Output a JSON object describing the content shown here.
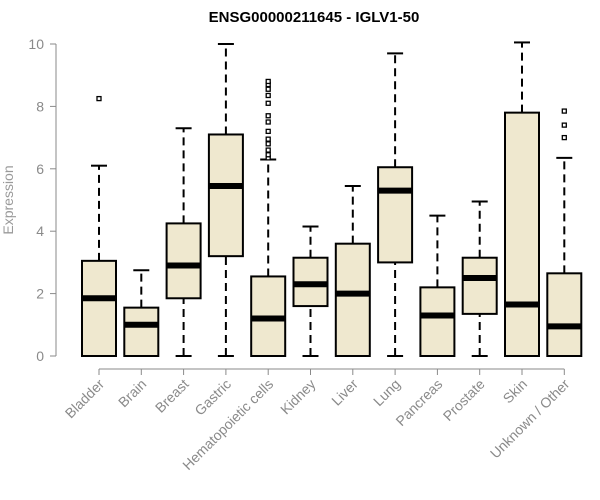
{
  "chart_data": {
    "type": "boxplot",
    "title": "ENSG00000211645 - IGLV1-50",
    "xlabel": "",
    "ylabel": "Expression",
    "ylim": [
      0,
      10
    ],
    "yticks": [
      0,
      2,
      4,
      6,
      8,
      10
    ],
    "grid": false,
    "box_fill": "#efe8cf",
    "box_stroke": "#000000",
    "axis_color": "#8a8a8a",
    "categories": [
      "Bladder",
      "Brain",
      "Breast",
      "Gastric",
      "Hematopoietic cells",
      "Kidney",
      "Liver",
      "Lung",
      "Pancreas",
      "Prostate",
      "Skin",
      "Unknown / Other"
    ],
    "boxes": [
      {
        "whisker_low": 0,
        "q1": 0,
        "median": 1.85,
        "q3": 3.05,
        "whisker_high": 6.1,
        "outliers": [
          8.25
        ]
      },
      {
        "whisker_low": 0,
        "q1": 0,
        "median": 1.0,
        "q3": 1.55,
        "whisker_high": 2.75,
        "outliers": []
      },
      {
        "whisker_low": 0,
        "q1": 1.85,
        "median": 2.9,
        "q3": 4.25,
        "whisker_high": 7.3,
        "outliers": []
      },
      {
        "whisker_low": 0,
        "q1": 3.2,
        "median": 5.45,
        "q3": 7.1,
        "whisker_high": 10.0,
        "outliers": []
      },
      {
        "whisker_low": 0,
        "q1": 0,
        "median": 1.2,
        "q3": 2.55,
        "whisker_high": 6.3,
        "outliers": [
          6.35,
          6.45,
          6.6,
          6.8,
          6.95,
          7.2,
          7.5,
          7.7,
          8.1,
          8.35,
          8.55,
          8.7,
          8.8
        ]
      },
      {
        "whisker_low": 0,
        "q1": 1.6,
        "median": 2.3,
        "q3": 3.15,
        "whisker_high": 4.15,
        "outliers": []
      },
      {
        "whisker_low": 0,
        "q1": 0,
        "median": 2.0,
        "q3": 3.6,
        "whisker_high": 5.45,
        "outliers": []
      },
      {
        "whisker_low": 0,
        "q1": 3.0,
        "median": 5.3,
        "q3": 6.05,
        "whisker_high": 9.7,
        "outliers": []
      },
      {
        "whisker_low": 0,
        "q1": 0,
        "median": 1.3,
        "q3": 2.2,
        "whisker_high": 4.5,
        "outliers": []
      },
      {
        "whisker_low": 0,
        "q1": 1.35,
        "median": 2.5,
        "q3": 3.15,
        "whisker_high": 4.95,
        "outliers": []
      },
      {
        "whisker_low": 0,
        "q1": 0,
        "median": 1.65,
        "q3": 7.8,
        "whisker_high": 10.05,
        "outliers": []
      },
      {
        "whisker_low": 0,
        "q1": 0,
        "median": 0.95,
        "q3": 2.65,
        "whisker_high": 6.35,
        "outliers": [
          7.0,
          7.4,
          7.85
        ]
      }
    ]
  }
}
